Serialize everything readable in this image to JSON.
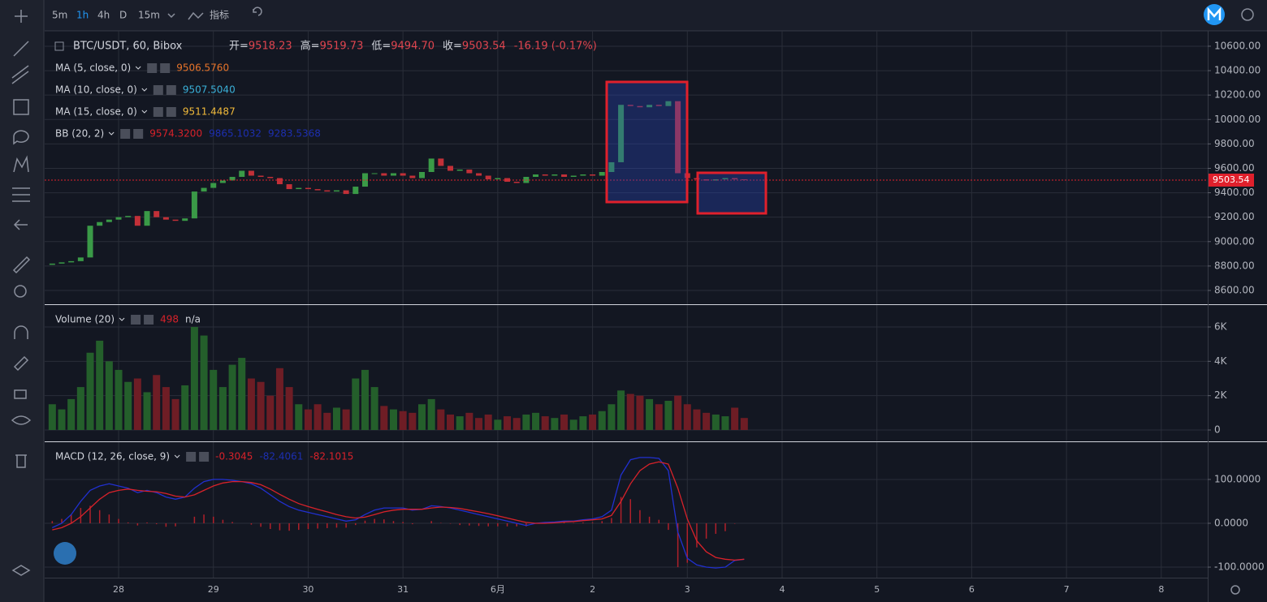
{
  "toolbar": {
    "intervals": [
      "5m",
      "1h",
      "4h",
      "D",
      "15m"
    ],
    "indicators": "指标"
  },
  "header": {
    "symbol": "BTC/USDT, 60, Bibox",
    "ohlc": [
      {
        "label": "开=",
        "value": "9518.23"
      },
      {
        "label": "高=",
        "value": "9519.73"
      },
      {
        "label": "低=",
        "value": "9494.70"
      },
      {
        "label": "收=",
        "value": "9503.54"
      }
    ],
    "change": "-16.19 (-0.17%)"
  },
  "chart_data": [
    {
      "type": "candlestick",
      "x": [
        27.3,
        27.4,
        27.5,
        27.6,
        27.7,
        27.8,
        27.9,
        28.0,
        28.1,
        28.2,
        28.3,
        28.4,
        28.5,
        28.6,
        28.7,
        28.8,
        28.9,
        29.0,
        29.1,
        29.2,
        29.3,
        29.4,
        29.5,
        29.6,
        29.7,
        29.8,
        29.9,
        30.0,
        30.1,
        30.2,
        30.3,
        30.4,
        30.5,
        30.6,
        30.7,
        30.8,
        30.9,
        31.0,
        31.1,
        31.2,
        31.3,
        31.4,
        31.5,
        31.6,
        31.7,
        31.8,
        31.9,
        32.0,
        32.1,
        32.2,
        32.3,
        32.4,
        32.5,
        32.6,
        32.7,
        32.8,
        32.9,
        33.0,
        33.1,
        33.2,
        33.3,
        33.4,
        33.5,
        33.6,
        33.7,
        33.8,
        33.9,
        34.0,
        34.1,
        34.2,
        34.3,
        34.4,
        34.5,
        34.6
      ],
      "open": [
        8810,
        8820,
        8830,
        8840,
        8870,
        9130,
        9160,
        9180,
        9200,
        9210,
        9130,
        9250,
        9200,
        9180,
        9170,
        9190,
        9410,
        9440,
        9480,
        9500,
        9530,
        9580,
        9540,
        9530,
        9520,
        9470,
        9430,
        9440,
        9430,
        9420,
        9410,
        9420,
        9390,
        9450,
        9560,
        9560,
        9540,
        9560,
        9540,
        9520,
        9570,
        9680,
        9620,
        9580,
        9590,
        9560,
        9540,
        9510,
        9520,
        9490,
        9480,
        9530,
        9550,
        9540,
        9550,
        9530,
        9540,
        9550,
        9540,
        9570,
        9650,
        10120,
        10110,
        10100,
        10120,
        10110,
        10150,
        9560,
        9520,
        9510,
        9500,
        9510,
        9520,
        9510
      ],
      "close": [
        8820,
        8830,
        8840,
        8870,
        9130,
        9160,
        9180,
        9200,
        9210,
        9130,
        9250,
        9200,
        9180,
        9170,
        9190,
        9410,
        9440,
        9480,
        9500,
        9530,
        9580,
        9540,
        9530,
        9520,
        9470,
        9430,
        9440,
        9430,
        9420,
        9410,
        9420,
        9390,
        9450,
        9560,
        9560,
        9540,
        9560,
        9540,
        9520,
        9570,
        9680,
        9620,
        9580,
        9590,
        9560,
        9540,
        9510,
        9520,
        9490,
        9480,
        9530,
        9550,
        9540,
        9550,
        9530,
        9540,
        9550,
        9540,
        9570,
        9650,
        10120,
        10110,
        10100,
        10120,
        10110,
        10150,
        9560,
        9520,
        9510,
        9500,
        9510,
        9520,
        9510,
        9505
      ],
      "up_color": "#3a9a47",
      "down_color": "#c23038",
      "xlim": [
        27.22,
        39.49
      ],
      "ylim": [
        8487,
        10726
      ],
      "yticks": [
        {
          "value": 8600,
          "label": "8600.00"
        },
        {
          "value": 8800,
          "label": "8800.00"
        },
        {
          "value": 9000,
          "label": "9000.00"
        },
        {
          "value": 9200,
          "label": "9200.00"
        },
        {
          "value": 9400,
          "label": "9400.00"
        },
        {
          "value": 9600,
          "label": "9600.00"
        },
        {
          "value": 9800,
          "label": "9800.00"
        },
        {
          "value": 10000,
          "label": "10000.00"
        },
        {
          "value": 10200,
          "label": "10200.00"
        },
        {
          "value": 10400,
          "label": "10400.00"
        },
        {
          "value": 10600,
          "label": "10600.00"
        }
      ],
      "last_price": 9503.54,
      "legends": [
        {
          "name": "MA (5, close, 0)",
          "values": [
            "9506.5760"
          ],
          "colors": [
            "#e8742a"
          ]
        },
        {
          "name": "MA (10, close, 0)",
          "values": [
            "9507.5040"
          ],
          "colors": [
            "#3ab0d8"
          ]
        },
        {
          "name": "MA (15, close, 0)",
          "values": [
            "9511.4487"
          ],
          "colors": [
            "#f0b93a"
          ]
        },
        {
          "name": "BB (20, 2)",
          "values": [
            "9574.3200",
            "9865.1032",
            "9283.5368"
          ],
          "colors": [
            "#d8222a",
            "#1d2fb0",
            "#1d2fb0"
          ]
        }
      ]
    },
    {
      "type": "bar",
      "x": [
        27.3,
        27.4,
        27.5,
        27.6,
        27.7,
        27.8,
        27.9,
        28.0,
        28.1,
        28.2,
        28.3,
        28.4,
        28.5,
        28.6,
        28.7,
        28.8,
        28.9,
        29.0,
        29.1,
        29.2,
        29.3,
        29.4,
        29.5,
        29.6,
        29.7,
        29.8,
        29.9,
        30.0,
        30.1,
        30.2,
        30.3,
        30.4,
        30.5,
        30.6,
        30.7,
        30.8,
        30.9,
        31.0,
        31.1,
        31.2,
        31.3,
        31.4,
        31.5,
        31.6,
        31.7,
        31.8,
        31.9,
        32.0,
        32.1,
        32.2,
        32.3,
        32.4,
        32.5,
        32.6,
        32.7,
        32.8,
        32.9,
        33.0,
        33.1,
        33.2,
        33.3,
        33.4,
        33.5,
        33.6,
        33.7,
        33.8,
        33.9,
        34.0,
        34.1,
        34.2,
        34.3,
        34.4,
        34.5,
        34.6
      ],
      "values": [
        1500,
        1200,
        1800,
        2500,
        4500,
        5200,
        4000,
        3500,
        2800,
        3000,
        2200,
        3200,
        2500,
        1800,
        2600,
        6000,
        5500,
        3500,
        2500,
        3800,
        4200,
        3000,
        2800,
        2000,
        3600,
        2500,
        1500,
        1200,
        1500,
        1000,
        1300,
        1200,
        3000,
        3500,
        2500,
        1400,
        1200,
        1100,
        1000,
        1500,
        1800,
        1200,
        900,
        800,
        1000,
        700,
        900,
        600,
        800,
        700,
        900,
        1000,
        800,
        700,
        900,
        600,
        800,
        900,
        1100,
        1500,
        2300,
        2100,
        2000,
        1800,
        1500,
        1700,
        2000,
        1500,
        1200,
        1000,
        900,
        800,
        1300,
        700
      ],
      "up_color": "#245f2b",
      "down_color": "#6e1d25",
      "xlim": [
        27.22,
        39.49
      ],
      "ylim": [
        -614,
        7275
      ],
      "yticks": [
        0,
        {
          "value": 2000,
          "label": "2K"
        },
        {
          "value": 4000,
          "label": "4K"
        },
        {
          "value": 6000,
          "label": "6K"
        }
      ],
      "legend": {
        "name": "Volume (20)",
        "values": [
          "498",
          "n/a"
        ],
        "colors": [
          "#d8222a",
          "#d1d4dc"
        ]
      }
    },
    {
      "type": "macd",
      "x": [
        27.3,
        27.4,
        27.5,
        27.6,
        27.7,
        27.8,
        27.9,
        28.0,
        28.1,
        28.2,
        28.3,
        28.4,
        28.5,
        28.6,
        28.7,
        28.8,
        28.9,
        29.0,
        29.1,
        29.2,
        29.3,
        29.4,
        29.5,
        29.6,
        29.7,
        29.8,
        29.9,
        30.0,
        30.1,
        30.2,
        30.3,
        30.4,
        30.5,
        30.6,
        30.7,
        30.8,
        30.9,
        31.0,
        31.1,
        31.2,
        31.3,
        31.4,
        31.5,
        31.6,
        31.7,
        31.8,
        31.9,
        32.0,
        32.1,
        32.2,
        32.3,
        32.4,
        32.5,
        32.6,
        32.7,
        32.8,
        32.9,
        33.0,
        33.1,
        33.2,
        33.3,
        33.4,
        33.5,
        33.6,
        33.7,
        33.8,
        33.9,
        34.0,
        34.1,
        34.2,
        34.3,
        34.4,
        34.5,
        34.6
      ],
      "histogram": [
        5,
        10,
        20,
        35,
        40,
        30,
        20,
        10,
        2,
        -5,
        2,
        -2,
        -8,
        -7,
        0,
        15,
        20,
        15,
        8,
        3,
        0,
        -3,
        -8,
        -13,
        -16,
        -17,
        -15,
        -13,
        -12,
        -11,
        -10,
        -10,
        -4,
        6,
        10,
        9,
        5,
        3,
        -2,
        0,
        5,
        1,
        -1,
        -4,
        -5,
        -6,
        -7,
        -7,
        -7,
        -7,
        -7,
        0,
        2,
        2,
        2,
        1,
        2,
        2,
        5,
        12,
        60,
        55,
        30,
        15,
        8,
        -15,
        -100,
        -90,
        -55,
        -35,
        -24,
        -18,
        -1,
        0
      ],
      "histogram_color": "#b0202a",
      "series": [
        {
          "name": "MACD",
          "color": "#2130d0",
          "values": [
            -10,
            0,
            20,
            50,
            75,
            85,
            90,
            85,
            80,
            70,
            75,
            70,
            60,
            55,
            60,
            80,
            95,
            100,
            100,
            98,
            95,
            90,
            80,
            65,
            50,
            38,
            30,
            25,
            20,
            15,
            10,
            5,
            8,
            20,
            30,
            35,
            35,
            35,
            30,
            32,
            40,
            38,
            35,
            30,
            25,
            20,
            15,
            10,
            5,
            0,
            -5,
            0,
            2,
            3,
            5,
            5,
            8,
            10,
            15,
            30,
            110,
            145,
            150,
            150,
            148,
            120,
            -20,
            -80,
            -95,
            -100,
            -102,
            -100,
            -85,
            -82
          ]
        },
        {
          "name": "Signal",
          "color": "#d8222a",
          "values": [
            -15,
            -10,
            0,
            15,
            35,
            55,
            70,
            75,
            78,
            75,
            73,
            72,
            68,
            62,
            60,
            65,
            75,
            85,
            92,
            95,
            95,
            93,
            88,
            78,
            66,
            55,
            45,
            38,
            32,
            26,
            20,
            15,
            12,
            14,
            20,
            26,
            30,
            32,
            32,
            32,
            35,
            37,
            36,
            34,
            30,
            26,
            22,
            17,
            12,
            7,
            2,
            0,
            0,
            1,
            3,
            4,
            6,
            8,
            10,
            18,
            50,
            90,
            120,
            135,
            140,
            135,
            80,
            10,
            -40,
            -65,
            -78,
            -82,
            -84,
            -82
          ]
        }
      ],
      "xlim": [
        27.22,
        39.49
      ],
      "ylim": [
        -124,
        185
      ],
      "yticks": [
        {
          "value": -100,
          "label": "-100.0000"
        },
        {
          "value": 0,
          "label": "0.0000"
        },
        {
          "value": 100,
          "label": "100.0000"
        }
      ],
      "xticks": [
        28,
        29,
        30,
        31,
        {
          "value": 32,
          "label": "6月"
        },
        {
          "value": 33,
          "label": "2"
        },
        {
          "value": 34,
          "label": "3"
        },
        {
          "value": 35,
          "label": "4"
        },
        {
          "value": 36,
          "label": "5"
        },
        {
          "value": 37,
          "label": "6"
        },
        {
          "value": 38,
          "label": "7"
        },
        {
          "value": 39,
          "label": "8"
        }
      ],
      "legend": {
        "name": "MACD (12, 26, close, 9)",
        "values": [
          "-0.3045",
          "-82.4061",
          "-82.1015"
        ],
        "colors": [
          "#d8222a",
          "#1d2fb0",
          "#d8222a"
        ]
      }
    }
  ]
}
